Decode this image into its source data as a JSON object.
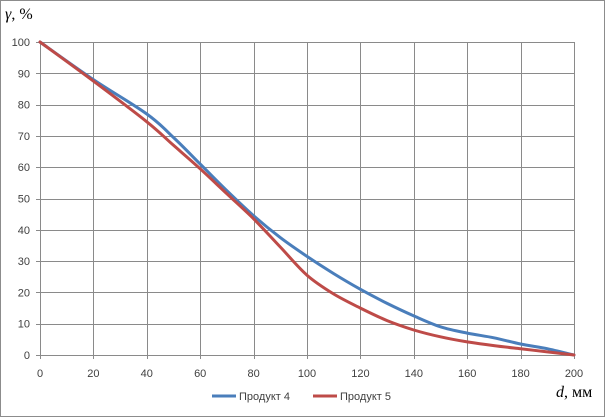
{
  "chart_data": {
    "type": "line",
    "xlabel_var": "d",
    "xlabel_unit": ", мм",
    "ylabel_var": "γ",
    "ylabel_unit": ", %",
    "xlim": [
      0,
      200
    ],
    "ylim": [
      0,
      100
    ],
    "x_ticks": [
      0,
      20,
      40,
      60,
      80,
      100,
      120,
      140,
      160,
      180,
      200
    ],
    "y_ticks": [
      0,
      10,
      20,
      30,
      40,
      50,
      60,
      70,
      80,
      90,
      100
    ],
    "grid": true,
    "legend_position": "bottom",
    "series": [
      {
        "name": "Продукт 4",
        "color": "#4a7ebb",
        "x": [
          0,
          20,
          40,
          50,
          60,
          70,
          80,
          90,
          100,
          110,
          120,
          130,
          140,
          150,
          160,
          170,
          180,
          190,
          200
        ],
        "y": [
          100,
          88,
          77,
          69.5,
          61,
          52.5,
          44.5,
          37.5,
          31.5,
          26,
          21,
          16.5,
          12.5,
          9,
          7,
          5.5,
          3.5,
          2,
          0
        ]
      },
      {
        "name": "Продукт 5",
        "color": "#be4b48",
        "x": [
          0,
          20,
          40,
          50,
          60,
          70,
          80,
          90,
          100,
          110,
          120,
          130,
          140,
          150,
          160,
          170,
          180,
          190,
          200
        ],
        "y": [
          100,
          87.5,
          74.5,
          67,
          59.5,
          51.5,
          43.5,
          34.5,
          25.5,
          19.5,
          15,
          11,
          8,
          5.8,
          4.2,
          3,
          2,
          1,
          0
        ]
      }
    ]
  }
}
